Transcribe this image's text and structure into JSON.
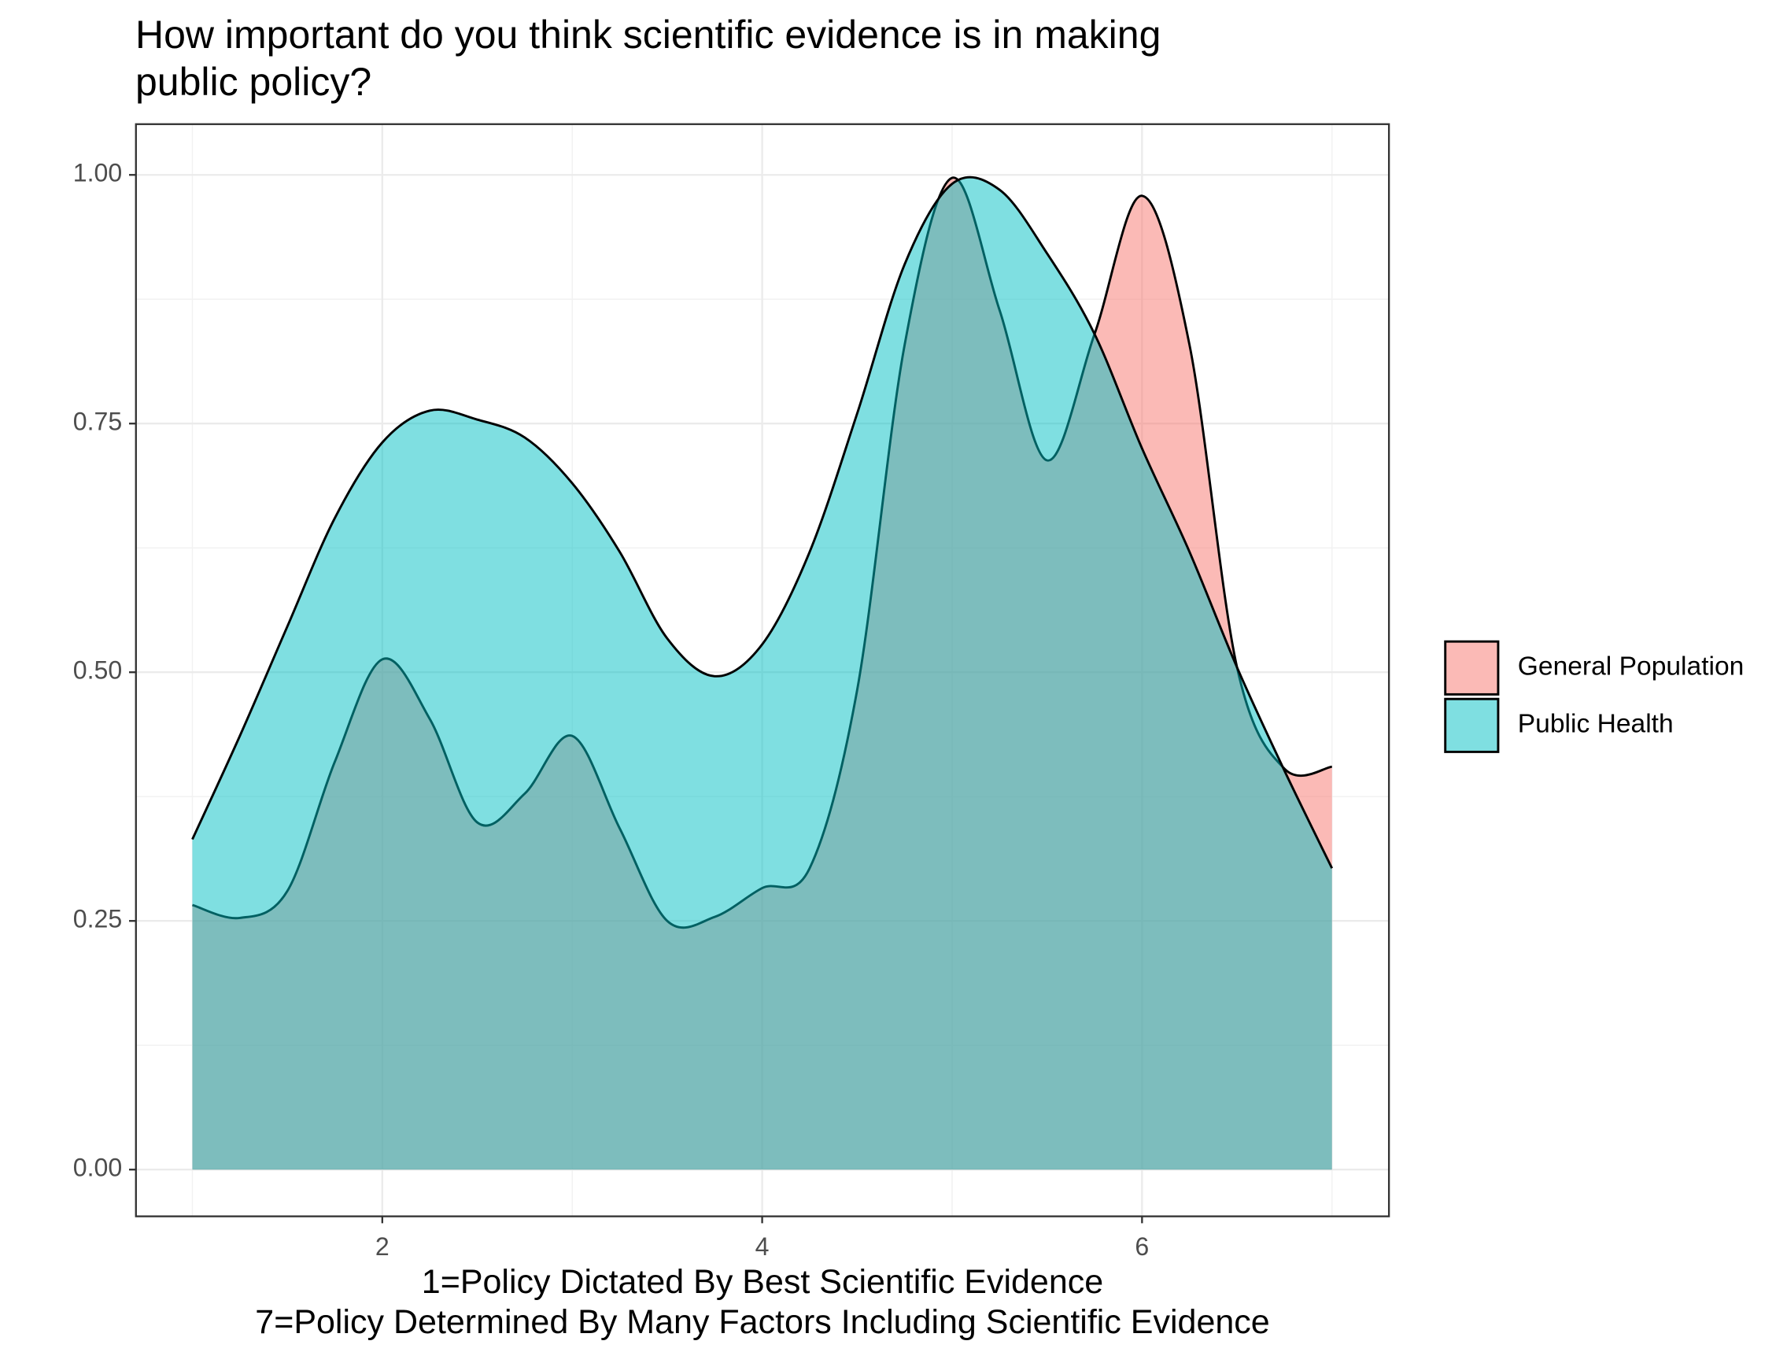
{
  "chart_data": {
    "type": "area",
    "title": "How important do you think scientific evidence is in making\npublic policy?",
    "x_label": "1=Policy Dictated By Best Scientific Evidence\n7=Policy Determined By Many Factors Including Scientific Evidence",
    "x": [
      1,
      1.25,
      1.5,
      1.75,
      2,
      2.25,
      2.5,
      2.75,
      3,
      3.25,
      3.5,
      3.75,
      4,
      4.25,
      4.5,
      4.75,
      5,
      5.25,
      5.5,
      5.75,
      6,
      6.25,
      6.5,
      6.75,
      7
    ],
    "series": [
      {
        "name": "General Population",
        "color": "#F8766D",
        "values": [
          0.266,
          0.253,
          0.28,
          0.41,
          0.513,
          0.453,
          0.349,
          0.378,
          0.436,
          0.343,
          0.25,
          0.254,
          0.283,
          0.303,
          0.482,
          0.829,
          0.997,
          0.864,
          0.713,
          0.84,
          0.979,
          0.829,
          0.505,
          0.403,
          0.405
        ]
      },
      {
        "name": "Public Health",
        "color": "#00BFC4",
        "values": [
          0.332,
          0.436,
          0.546,
          0.655,
          0.731,
          0.763,
          0.754,
          0.736,
          0.69,
          0.621,
          0.534,
          0.496,
          0.528,
          0.621,
          0.76,
          0.91,
          0.991,
          0.985,
          0.921,
          0.84,
          0.725,
          0.621,
          0.505,
          0.401,
          0.303
        ]
      }
    ],
    "xlim": [
      0.703,
      7.3
    ],
    "xticks": [
      2,
      4,
      6
    ],
    "ylim": [
      -0.047,
      1.051
    ],
    "yticks": [
      {
        "value": 0,
        "label": "0.00"
      },
      {
        "value": 0.25,
        "label": "0.25"
      },
      {
        "value": 0.5,
        "label": "0.50"
      },
      {
        "value": 0.75,
        "label": "0.75"
      },
      {
        "value": 1,
        "label": "1.00"
      }
    ],
    "grid": true,
    "legend": "right"
  }
}
